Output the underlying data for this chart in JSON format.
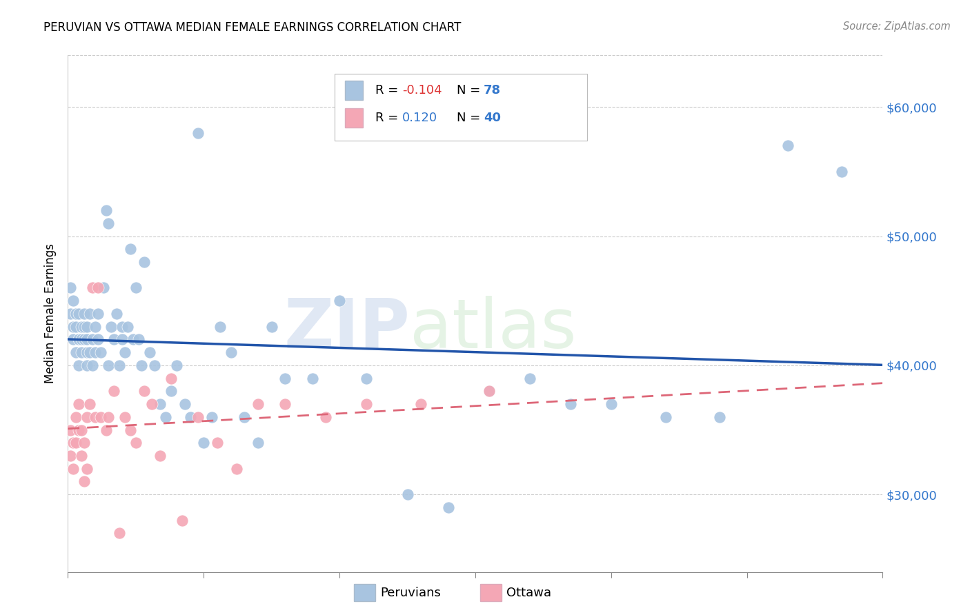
{
  "title": "PERUVIAN VS OTTAWA MEDIAN FEMALE EARNINGS CORRELATION CHART",
  "source": "Source: ZipAtlas.com",
  "ylabel": "Median Female Earnings",
  "yticks": [
    30000,
    40000,
    50000,
    60000
  ],
  "ytick_labels": [
    "$30,000",
    "$40,000",
    "$50,000",
    "$60,000"
  ],
  "xlim": [
    0.0,
    0.3
  ],
  "ylim": [
    24000,
    64000
  ],
  "peruvian_color": "#a8c4e0",
  "ottawa_color": "#f4a7b5",
  "peruvian_line_color": "#2255aa",
  "ottawa_line_color": "#dd6677",
  "background_color": "#ffffff",
  "grid_color": "#cccccc",
  "peruvians_x": [
    0.001,
    0.001,
    0.002,
    0.002,
    0.002,
    0.003,
    0.003,
    0.003,
    0.004,
    0.004,
    0.004,
    0.005,
    0.005,
    0.005,
    0.006,
    0.006,
    0.006,
    0.007,
    0.007,
    0.007,
    0.007,
    0.008,
    0.008,
    0.009,
    0.009,
    0.01,
    0.01,
    0.011,
    0.011,
    0.012,
    0.013,
    0.014,
    0.015,
    0.015,
    0.016,
    0.017,
    0.018,
    0.019,
    0.02,
    0.02,
    0.021,
    0.022,
    0.023,
    0.024,
    0.025,
    0.026,
    0.027,
    0.028,
    0.03,
    0.032,
    0.034,
    0.036,
    0.038,
    0.04,
    0.043,
    0.045,
    0.048,
    0.05,
    0.053,
    0.056,
    0.06,
    0.065,
    0.07,
    0.075,
    0.08,
    0.09,
    0.1,
    0.11,
    0.125,
    0.14,
    0.155,
    0.17,
    0.185,
    0.2,
    0.22,
    0.24,
    0.265,
    0.285
  ],
  "peruvians_y": [
    44000,
    46000,
    43000,
    42000,
    45000,
    44000,
    41000,
    43000,
    40000,
    42000,
    44000,
    42000,
    43000,
    41000,
    42000,
    43000,
    44000,
    41000,
    40000,
    42000,
    43000,
    41000,
    44000,
    40000,
    42000,
    43000,
    41000,
    42000,
    44000,
    41000,
    46000,
    52000,
    51000,
    40000,
    43000,
    42000,
    44000,
    40000,
    42000,
    43000,
    41000,
    43000,
    49000,
    42000,
    46000,
    42000,
    40000,
    48000,
    41000,
    40000,
    37000,
    36000,
    38000,
    40000,
    37000,
    36000,
    58000,
    34000,
    36000,
    43000,
    41000,
    36000,
    34000,
    43000,
    39000,
    39000,
    45000,
    39000,
    30000,
    29000,
    38000,
    39000,
    37000,
    37000,
    36000,
    36000,
    57000,
    55000
  ],
  "ottawa_x": [
    0.001,
    0.001,
    0.002,
    0.002,
    0.003,
    0.003,
    0.004,
    0.004,
    0.005,
    0.005,
    0.006,
    0.006,
    0.007,
    0.007,
    0.008,
    0.009,
    0.01,
    0.011,
    0.012,
    0.014,
    0.015,
    0.017,
    0.019,
    0.021,
    0.023,
    0.025,
    0.028,
    0.031,
    0.034,
    0.038,
    0.042,
    0.048,
    0.055,
    0.062,
    0.07,
    0.08,
    0.095,
    0.11,
    0.13,
    0.155
  ],
  "ottawa_y": [
    35000,
    33000,
    34000,
    32000,
    36000,
    34000,
    35000,
    37000,
    33000,
    35000,
    31000,
    34000,
    36000,
    32000,
    37000,
    46000,
    36000,
    46000,
    36000,
    35000,
    36000,
    38000,
    27000,
    36000,
    35000,
    34000,
    38000,
    37000,
    33000,
    39000,
    28000,
    36000,
    34000,
    32000,
    37000,
    37000,
    36000,
    37000,
    37000,
    38000
  ]
}
